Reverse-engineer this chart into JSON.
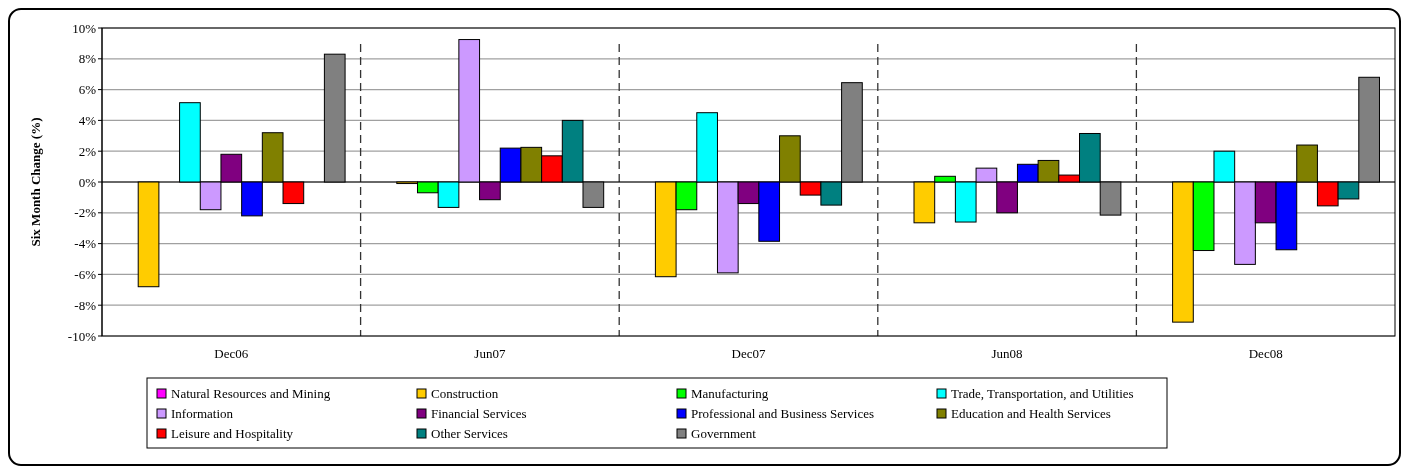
{
  "chart_data": {
    "type": "bar",
    "ylabel": "Six Month Change (%)",
    "categories": [
      "Dec06",
      "Jun07",
      "Dec07",
      "Jun08",
      "Dec08"
    ],
    "series": [
      {
        "name": "Natural Resources and Mining",
        "color": "#ff00ff",
        "values": [
          null,
          null,
          null,
          null,
          null
        ]
      },
      {
        "name": "Construction",
        "color": "#ffcc00",
        "values": [
          -6.8,
          -0.1,
          -6.15,
          -2.65,
          -9.1
        ]
      },
      {
        "name": "Manufacturing",
        "color": "#00ff00",
        "values": [
          null,
          -0.7,
          -1.8,
          0.37,
          -4.45
        ]
      },
      {
        "name": "Trade, Transportation, and Utilities",
        "color": "#00ffff",
        "values": [
          5.15,
          -1.65,
          4.5,
          -2.6,
          2.0
        ]
      },
      {
        "name": "Information",
        "color": "#cc99ff",
        "values": [
          -1.8,
          9.25,
          -5.9,
          0.9,
          -5.35
        ]
      },
      {
        "name": "Financial Services",
        "color": "#800080",
        "values": [
          1.8,
          -1.15,
          -1.4,
          -2.0,
          -2.65
        ]
      },
      {
        "name": "Professional and Business Services",
        "color": "#0000ff",
        "values": [
          -2.2,
          2.2,
          -3.85,
          1.15,
          -4.4
        ]
      },
      {
        "name": "Education and Health Services",
        "color": "#808000",
        "values": [
          3.2,
          2.25,
          3.0,
          1.4,
          2.4
        ]
      },
      {
        "name": "Leisure and Hospitality",
        "color": "#ff0000",
        "values": [
          -1.4,
          1.7,
          -0.85,
          0.45,
          -1.55
        ]
      },
      {
        "name": "Other Services",
        "color": "#008080",
        "values": [
          null,
          4.0,
          -1.5,
          3.15,
          -1.1
        ]
      },
      {
        "name": "Government",
        "color": "#808080",
        "values": [
          8.3,
          -1.65,
          6.45,
          -2.15,
          6.8
        ]
      }
    ],
    "ylim": [
      -10,
      10
    ],
    "yticks": [
      {
        "value": -10,
        "label": "-10%"
      },
      {
        "value": -8,
        "label": "-8%"
      },
      {
        "value": -6,
        "label": "-6%"
      },
      {
        "value": -4,
        "label": "-4%"
      },
      {
        "value": -2,
        "label": "-2%"
      },
      {
        "value": 0,
        "label": "0%"
      },
      {
        "value": 2,
        "label": "2%"
      },
      {
        "value": 4,
        "label": "4%"
      },
      {
        "value": 6,
        "label": "6%"
      },
      {
        "value": 8,
        "label": "8%"
      },
      {
        "value": 10,
        "label": "10%"
      }
    ],
    "grid": "y",
    "legend": "bottom"
  }
}
